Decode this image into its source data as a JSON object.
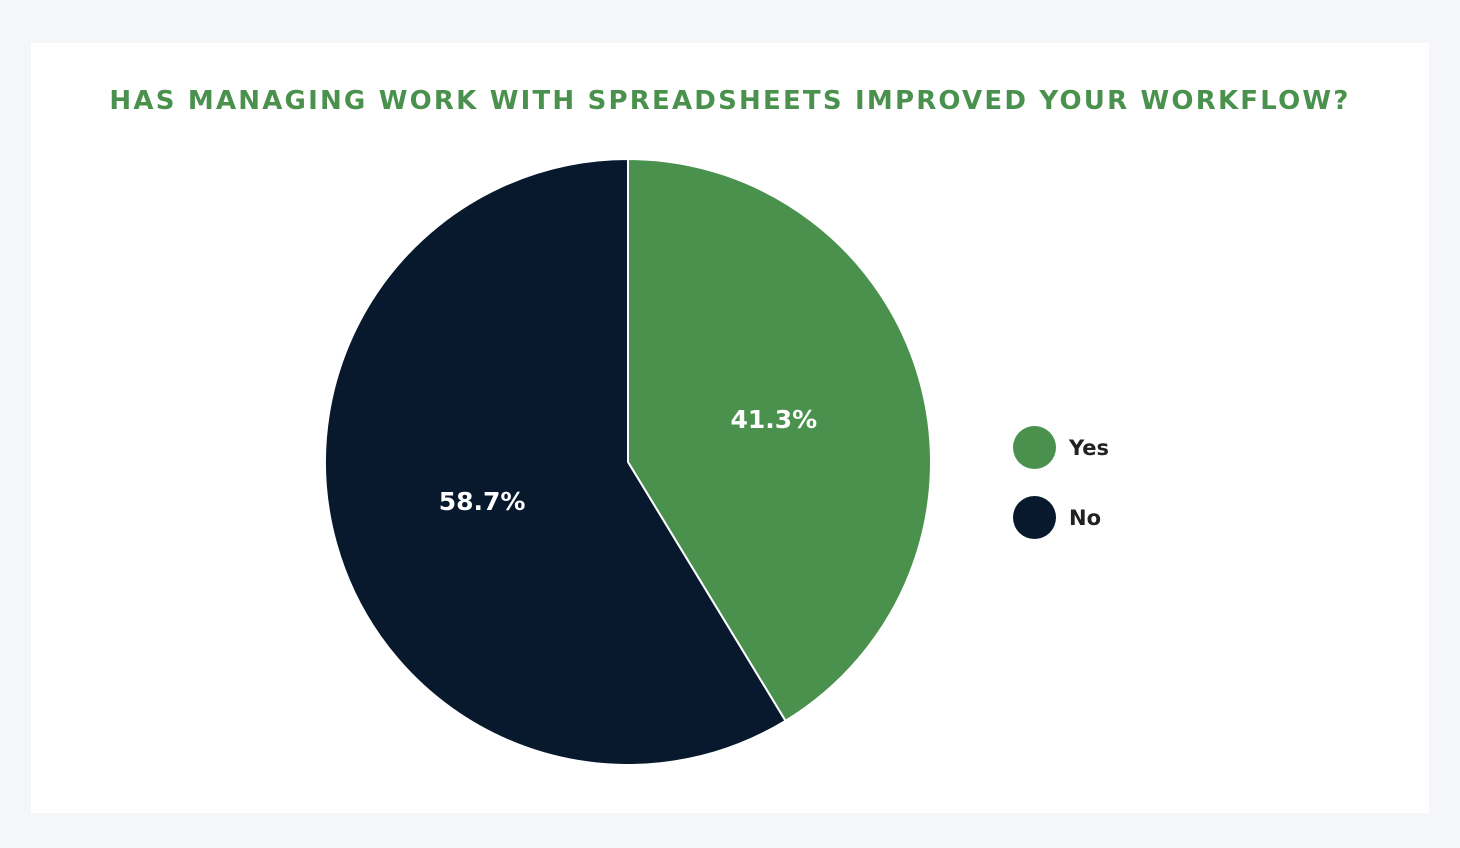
{
  "chart_data": {
    "type": "pie",
    "title": "HAS MANAGING WORK WITH SPREADSHEETS IMPROVED YOUR WORKFLOW?",
    "categories": [
      "Yes",
      "No"
    ],
    "values": [
      41.3,
      58.7
    ],
    "labels": [
      "41.3%",
      "58.7%"
    ],
    "colors": [
      "#4a914e",
      "#08192d"
    ],
    "legend_position": "right",
    "start_angle": "12 o'clock",
    "direction": "clockwise"
  },
  "colors": {
    "title": "#4a914e",
    "background": "#f4f6f9",
    "card": "#ffffff"
  }
}
